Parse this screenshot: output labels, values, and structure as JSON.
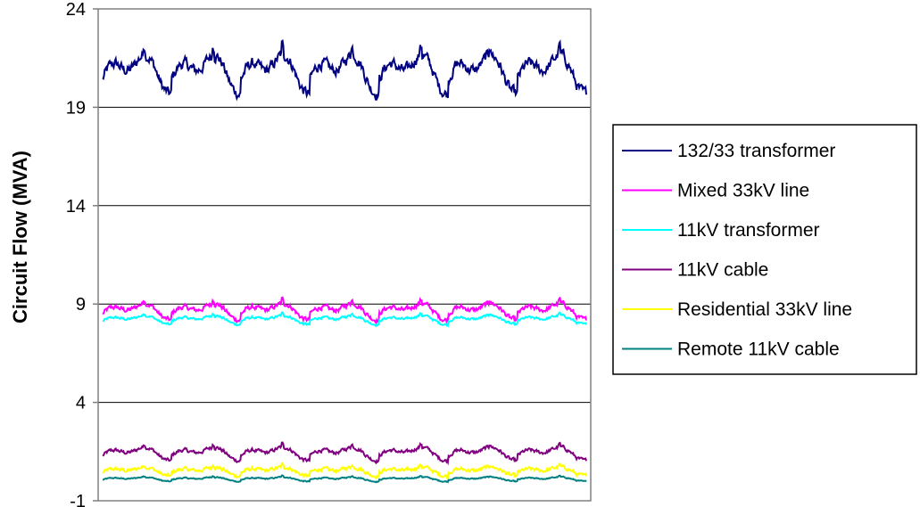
{
  "chart_data": {
    "type": "line",
    "title": "",
    "xlabel": "",
    "ylabel": "Circuit Flow (MVA)",
    "ylim": [
      -1,
      24
    ],
    "yticks": [
      -1,
      4,
      9,
      14,
      19,
      24
    ],
    "ytick_labels": [
      "-1",
      "4",
      "9",
      "14",
      "19",
      "24"
    ],
    "grid": "horizontal",
    "legend_position": "right",
    "n_days": 7,
    "series": [
      {
        "name": "132/33 transformer",
        "color": "#000080",
        "base": 19.0,
        "amp": 2.6,
        "noise": 0.45,
        "values_summary": {
          "min": 18.5,
          "max": 22.3
        }
      },
      {
        "name": "Mixed 33kV line",
        "color": "#ff00ff",
        "base": 7.9,
        "amp": 1.1,
        "noise": 0.2,
        "values_summary": {
          "min": 7.8,
          "max": 9.4
        }
      },
      {
        "name": "11kV transformer",
        "color": "#00ffff",
        "base": 7.8,
        "amp": 0.6,
        "noise": 0.1,
        "values_summary": {
          "min": 7.6,
          "max": 8.5
        }
      },
      {
        "name": "11kV cable",
        "color": "#800080",
        "base": 0.8,
        "amp": 0.9,
        "noise": 0.15,
        "values_summary": {
          "min": 0.7,
          "max": 2.0
        }
      },
      {
        "name": "Residential 33kV line",
        "color": "#ffff00",
        "base": 0.1,
        "amp": 0.6,
        "noise": 0.15,
        "values_summary": {
          "min": -0.1,
          "max": 0.9
        }
      },
      {
        "name": "Remote 11kV cable",
        "color": "#008080",
        "base": -0.1,
        "amp": 0.3,
        "noise": 0.05,
        "values_summary": {
          "min": -0.3,
          "max": 0.2
        }
      }
    ]
  }
}
